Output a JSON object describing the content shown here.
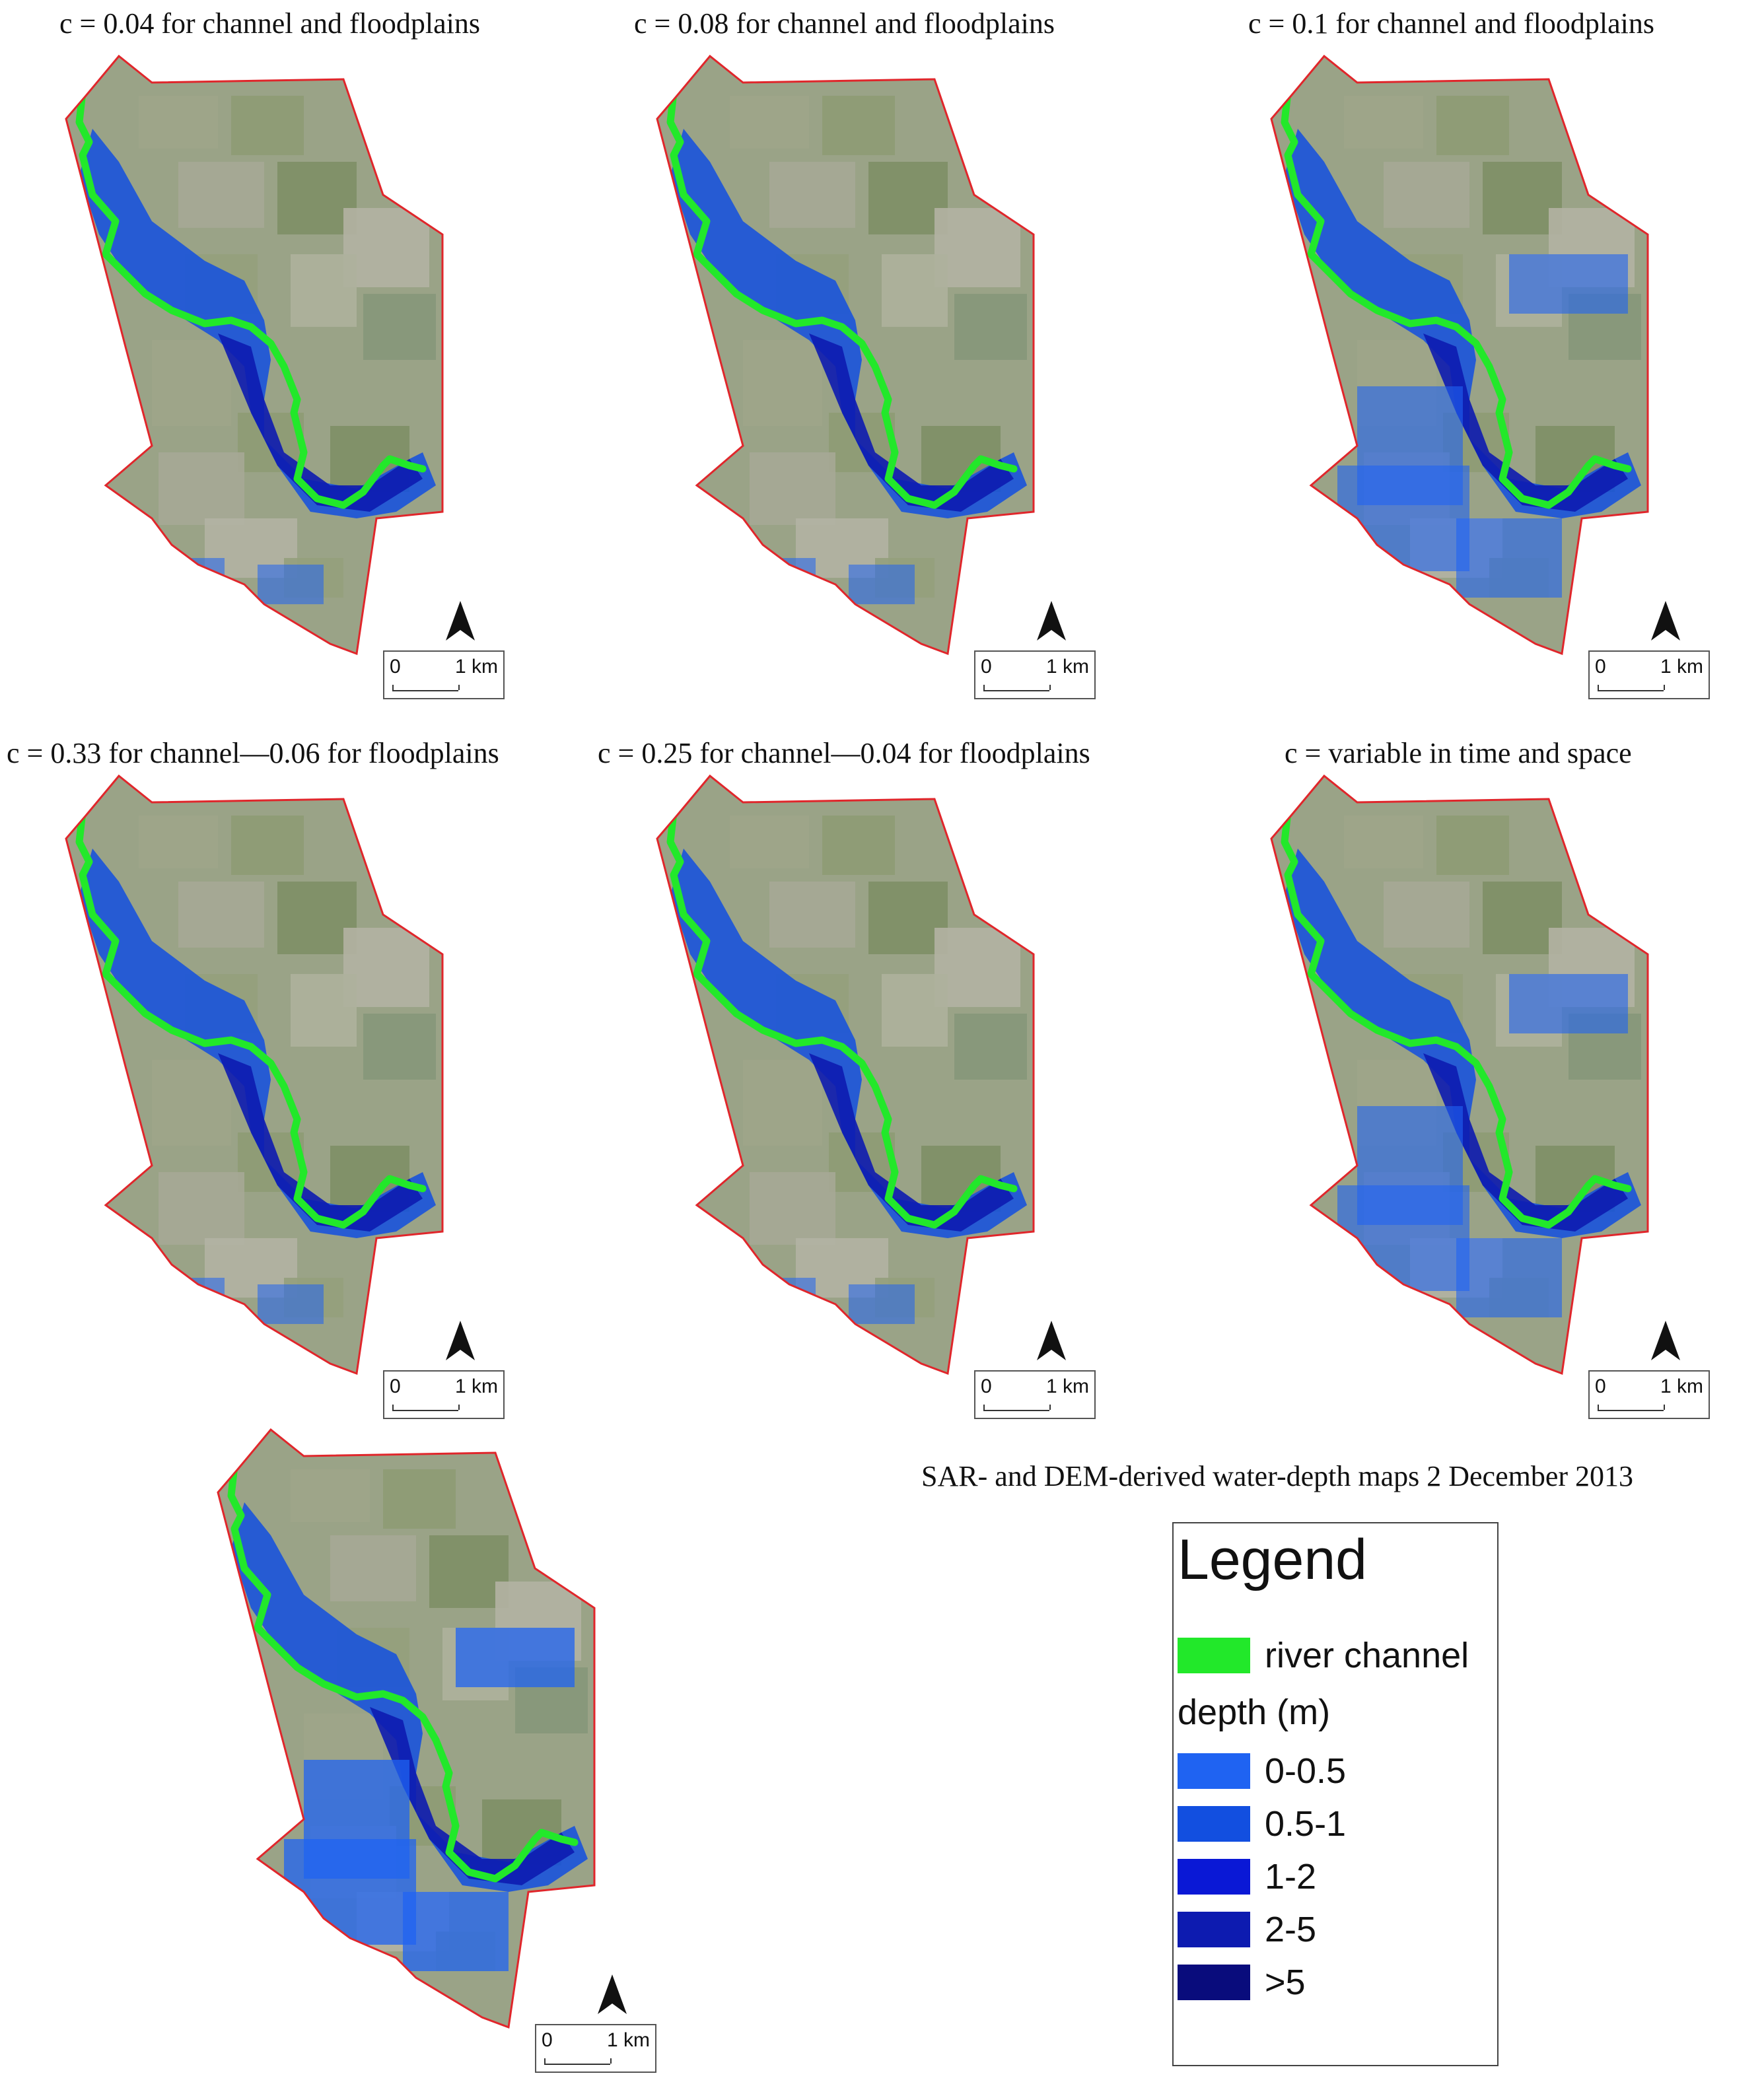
{
  "panels": [
    {
      "title": "c = 0.04 for channel and floodplains"
    },
    {
      "title": "c = 0.08 for channel and floodplains"
    },
    {
      "title": "c = 0.1 for channel and floodplains"
    },
    {
      "title": "c = 0.33 for channel—0.06 for floodplains"
    },
    {
      "title": "c = 0.25 for channel—0.04 for floodplains"
    },
    {
      "title": "c = variable in time and space"
    },
    {
      "title": ""
    }
  ],
  "scalebar": {
    "zero": "0",
    "one": "1 km"
  },
  "caption": "SAR- and DEM-derived water-depth maps 2 December 2013",
  "legend": {
    "title": "Legend",
    "river_label": "river channel",
    "depth_header": "depth (m)",
    "classes": [
      {
        "label": "0-0.5",
        "color": "#1f63f2"
      },
      {
        "label": "0.5-1",
        "color": "#124fe0"
      },
      {
        "label": "1-2",
        "color": "#0a18d6"
      },
      {
        "label": "2-5",
        "color": "#0d1bb0"
      },
      {
        "label": ">5",
        "color": "#090c7c"
      }
    ],
    "river_color": "#22e82a",
    "boundary_color": "#e0262b"
  }
}
